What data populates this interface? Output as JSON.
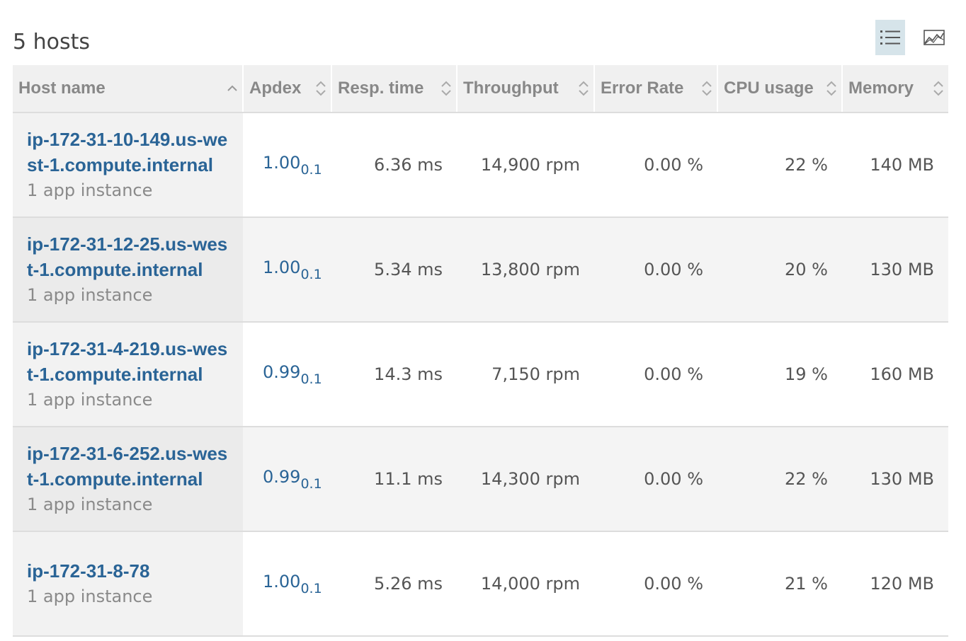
{
  "header": {
    "title": "5 hosts"
  },
  "table": {
    "columns": [
      {
        "label": "Host name",
        "sort": "asc"
      },
      {
        "label": "Apdex",
        "sort": "none"
      },
      {
        "label": "Resp. time",
        "sort": "none"
      },
      {
        "label": "Throughput",
        "sort": "none"
      },
      {
        "label": "Error Rate",
        "sort": "none"
      },
      {
        "label": "CPU usage",
        "sort": "none"
      },
      {
        "label": "Memory",
        "sort": "none"
      }
    ],
    "rows": [
      {
        "host": "ip-172-31-10-149.us-west-1.compute.internal",
        "instances": "1 app instance",
        "apdex": "1.00",
        "apdex_t": "0.1",
        "resp_time": "6.36 ms",
        "throughput": "14,900 rpm",
        "error_rate": "0.00 %",
        "cpu": "22 %",
        "memory": "140 MB"
      },
      {
        "host": "ip-172-31-12-25.us-west-1.compute.internal",
        "instances": "1 app instance",
        "apdex": "1.00",
        "apdex_t": "0.1",
        "resp_time": "5.34 ms",
        "throughput": "13,800 rpm",
        "error_rate": "0.00 %",
        "cpu": "20 %",
        "memory": "130 MB"
      },
      {
        "host": "ip-172-31-4-219.us-west-1.compute.internal",
        "instances": "1 app instance",
        "apdex": "0.99",
        "apdex_t": "0.1",
        "resp_time": "14.3 ms",
        "throughput": "7,150 rpm",
        "error_rate": "0.00 %",
        "cpu": "19 %",
        "memory": "160 MB"
      },
      {
        "host": "ip-172-31-6-252.us-west-1.compute.internal",
        "instances": "1 app instance",
        "apdex": "0.99",
        "apdex_t": "0.1",
        "resp_time": "11.1 ms",
        "throughput": "14,300 rpm",
        "error_rate": "0.00 %",
        "cpu": "22 %",
        "memory": "130 MB"
      },
      {
        "host": "ip-172-31-8-78",
        "instances": "1 app instance",
        "apdex": "1.00",
        "apdex_t": "0.1",
        "resp_time": "5.26 ms",
        "throughput": "14,000 rpm",
        "error_rate": "0.00 %",
        "cpu": "21 %",
        "memory": "120 MB"
      }
    ]
  },
  "icons": {
    "list_view": "list-view-icon",
    "chart_view": "chart-view-icon",
    "sort_asc": "chevron-up-icon",
    "sort_both": "sort-icon"
  },
  "colors": {
    "link": "#2a6496",
    "header_bg": "#f0f0f0",
    "active_toggle_bg": "#d6e4ea"
  }
}
